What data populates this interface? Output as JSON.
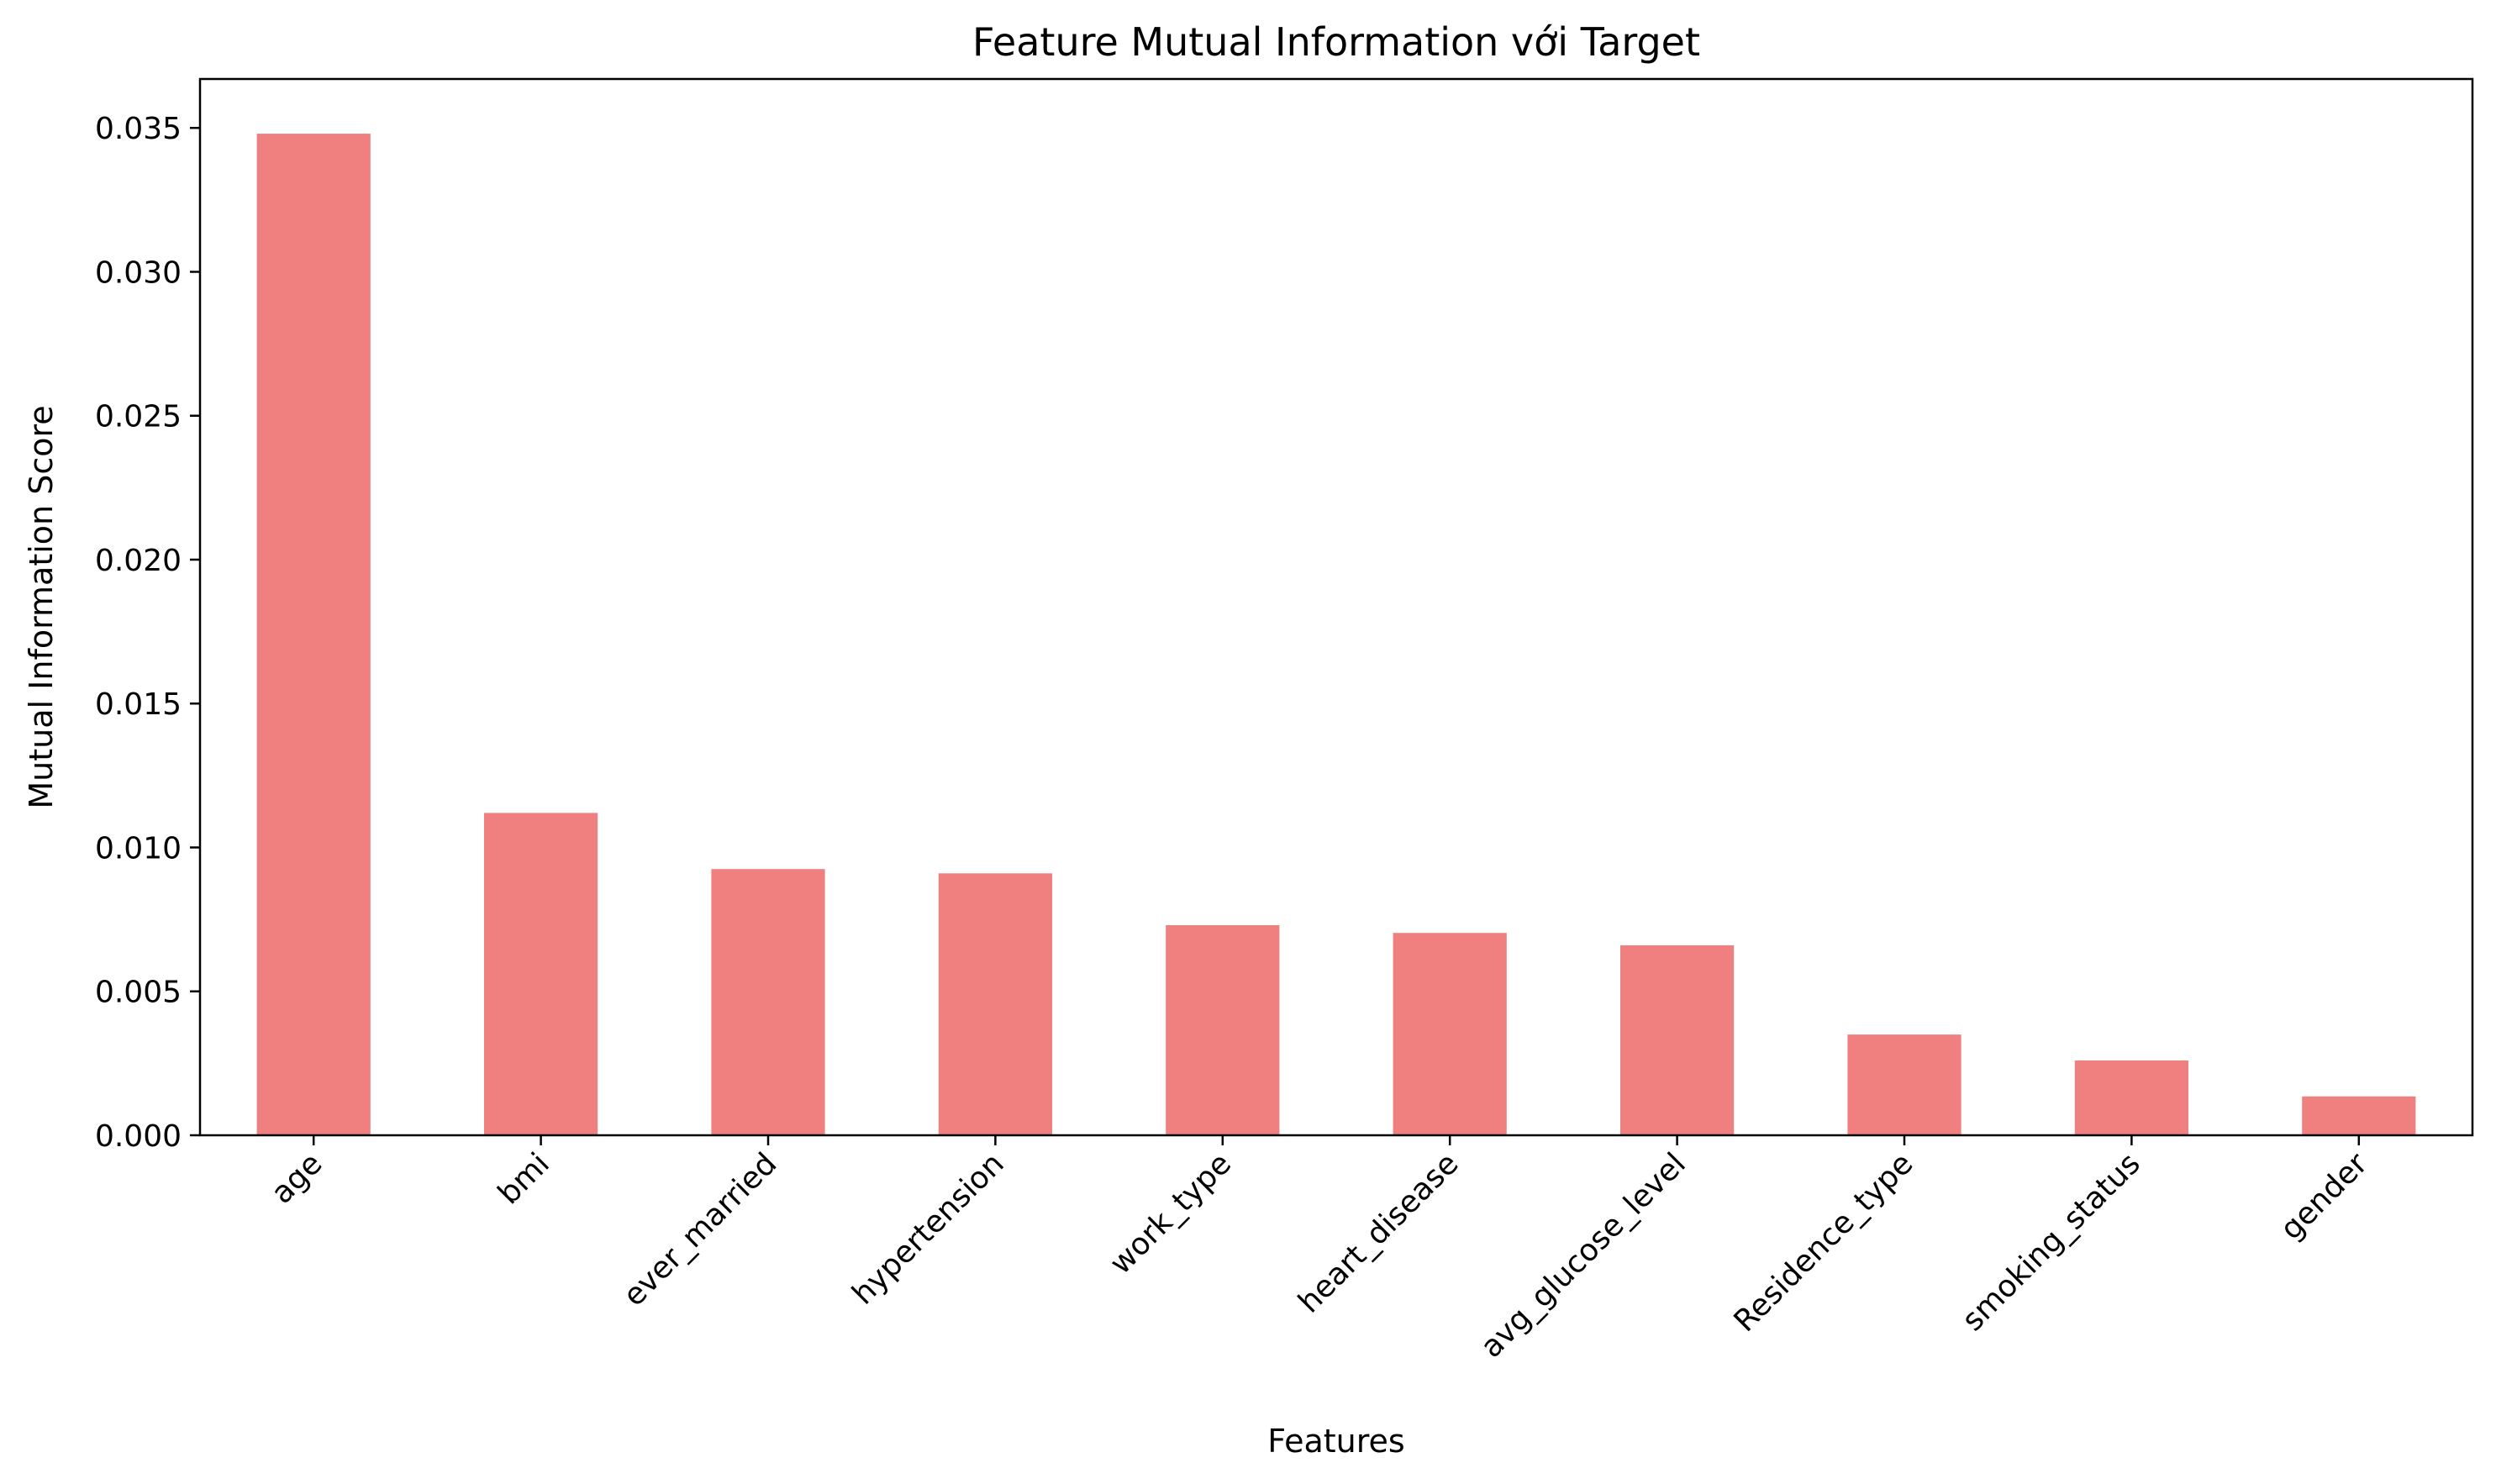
{
  "colors": {
    "bar": "#f08080",
    "axis": "#000000",
    "background": "#ffffff"
  },
  "chart_data": {
    "type": "bar",
    "title": "Feature Mutual Information với Target",
    "xlabel": "Features",
    "ylabel": "Mutual Information Score",
    "categories": [
      "age",
      "bmi",
      "ever_married",
      "hypertension",
      "work_type",
      "heart_disease",
      "avg_glucose_level",
      "Residence_type",
      "smoking_status",
      "gender"
    ],
    "values": [
      0.0348,
      0.0112,
      0.00925,
      0.0091,
      0.0073,
      0.00703,
      0.0066,
      0.0035,
      0.0026,
      0.00135
    ],
    "ylim": [
      0,
      0.0367
    ],
    "yticks": [
      0.0,
      0.005,
      0.01,
      0.015,
      0.02,
      0.025,
      0.03,
      0.035
    ],
    "ytick_labels": [
      "0.000",
      "0.005",
      "0.010",
      "0.015",
      "0.020",
      "0.025",
      "0.030",
      "0.035"
    ],
    "grid": false,
    "legend": "none"
  }
}
